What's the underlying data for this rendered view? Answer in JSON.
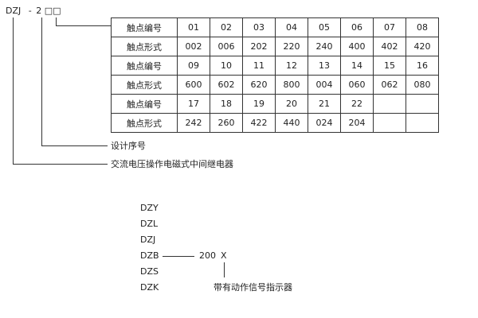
{
  "model_code": {
    "prefix": "DZJ",
    "dash": "-",
    "digit": "2",
    "boxes": "□□"
  },
  "table": {
    "rows": [
      {
        "label": "触点编号",
        "cells": [
          "01",
          "02",
          "03",
          "04",
          "05",
          "06",
          "07",
          "08"
        ]
      },
      {
        "label": "触点形式",
        "cells": [
          "002",
          "006",
          "202",
          "220",
          "240",
          "400",
          "402",
          "420"
        ]
      },
      {
        "label": "触点编号",
        "cells": [
          "09",
          "10",
          "11",
          "12",
          "13",
          "14",
          "15",
          "16"
        ]
      },
      {
        "label": "触点形式",
        "cells": [
          "600",
          "602",
          "620",
          "800",
          "004",
          "060",
          "062",
          "080"
        ]
      },
      {
        "label": "触点编号",
        "cells": [
          "17",
          "18",
          "19",
          "20",
          "21",
          "22",
          "",
          ""
        ]
      },
      {
        "label": "触点形式",
        "cells": [
          "242",
          "260",
          "422",
          "440",
          "024",
          "204",
          "",
          ""
        ]
      }
    ]
  },
  "annotations": {
    "design_serial": "设计序号",
    "relay_type": "交流电压操作电磁式中间继电器"
  },
  "series_list": [
    "DZY",
    "DZL",
    "DZJ",
    "DZB",
    "DZS",
    "DZK"
  ],
  "suffix": {
    "number": "200",
    "letter": "X",
    "note": "带有动作信号指示器"
  }
}
